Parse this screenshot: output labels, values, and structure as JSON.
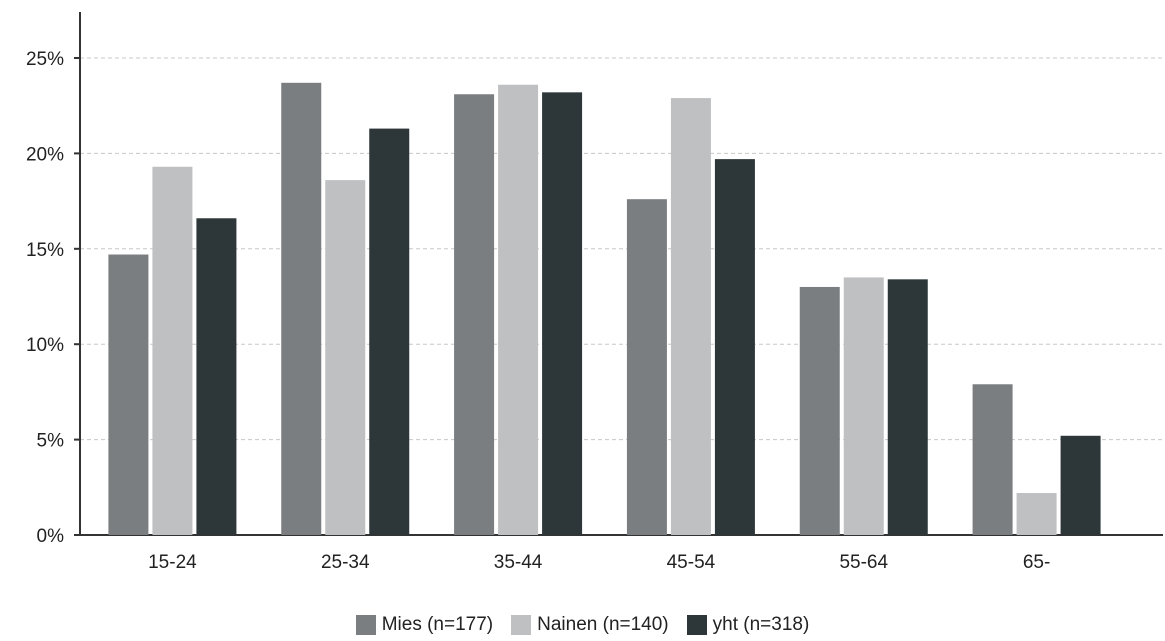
{
  "chart_data": {
    "type": "bar",
    "categories": [
      "15-24",
      "25-34",
      "35-44",
      "45-54",
      "55-64",
      "65-"
    ],
    "series": [
      {
        "name": "Mies (n=177)",
        "color": "#7a7e80",
        "values": [
          14.7,
          23.7,
          23.1,
          17.6,
          13.0,
          7.9
        ]
      },
      {
        "name": "Nainen (n=140)",
        "color": "#bfc0c1",
        "values": [
          19.3,
          18.6,
          23.6,
          22.9,
          13.5,
          2.2
        ]
      },
      {
        "name": "yht (n=318)",
        "color": "#2d3638",
        "values": [
          16.6,
          21.3,
          23.2,
          19.7,
          13.4,
          5.2
        ]
      }
    ],
    "y_ticks": [
      "0%",
      "5%",
      "10%",
      "15%",
      "20%",
      "25%"
    ],
    "y_tick_values": [
      0,
      5,
      10,
      15,
      20,
      25
    ],
    "ylim": [
      0,
      25
    ],
    "grid": true,
    "legend_position": "bottom"
  }
}
